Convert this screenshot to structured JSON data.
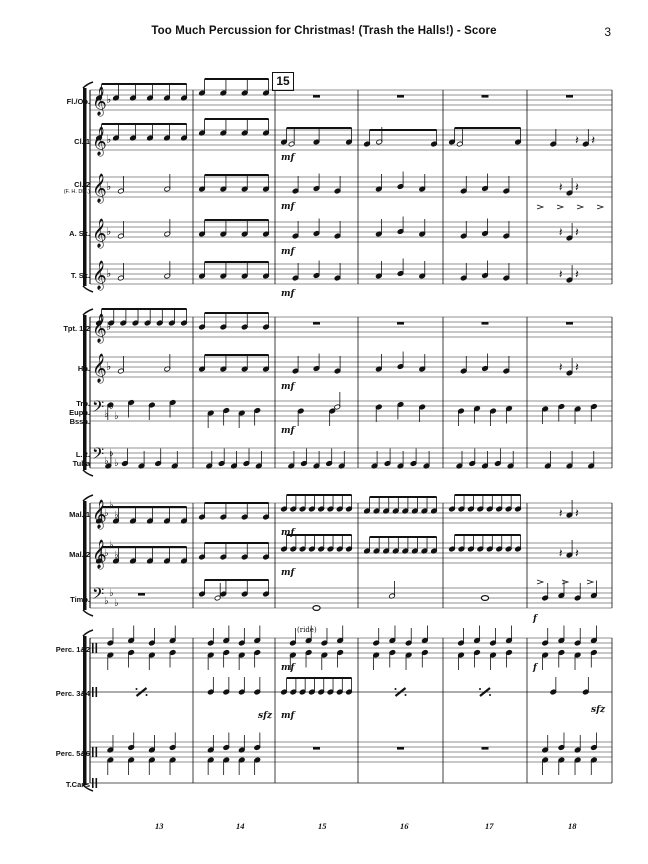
{
  "header": {
    "title": "Too Much Percussion for Christmas! (Trash the Halls!) - Score",
    "page_number": "3"
  },
  "rehearsal_mark": "15",
  "instruments": [
    {
      "name": "Fl./Ob.",
      "sub": "",
      "clef": "treble",
      "key": "flat1"
    },
    {
      "name": "Cl. 1",
      "sub": "",
      "clef": "treble",
      "key": "flat1"
    },
    {
      "name": "Cl. 2",
      "sub": "(F. H. Dbl.)",
      "clef": "treble",
      "key": "flat1"
    },
    {
      "name": "A. Sx.",
      "sub": "",
      "clef": "treble",
      "key": "flat1"
    },
    {
      "name": "T. Sx.",
      "sub": "",
      "clef": "treble",
      "key": "flat1"
    },
    {
      "name": "Tpt. 1-2",
      "sub": "",
      "clef": "treble",
      "key": "flat1"
    },
    {
      "name": "Hn.",
      "sub": "",
      "clef": "treble",
      "key": "flat1"
    },
    {
      "name": "Trb.\nEuph.\nBssn.",
      "sub": "",
      "clef": "bass",
      "key": "flat3"
    },
    {
      "name": "L.R.\nTuba",
      "sub": "",
      "clef": "bass",
      "key": "flat3"
    },
    {
      "name": "Mal. 1",
      "sub": "",
      "clef": "treble",
      "key": "flat3"
    },
    {
      "name": "Mal. 2",
      "sub": "",
      "clef": "treble",
      "key": "flat3"
    },
    {
      "name": "Timp.",
      "sub": "",
      "clef": "bass",
      "key": "flat3"
    },
    {
      "name": "Perc. 1&2",
      "sub": "",
      "clef": "perc",
      "key": "none"
    },
    {
      "name": "Perc. 3&4",
      "sub": "",
      "clef": "perc",
      "key": "none"
    },
    {
      "name": "Perc. 5&6",
      "sub": "",
      "clef": "perc",
      "key": "none"
    },
    {
      "name": "T.Cans",
      "sub": "",
      "clef": "perc",
      "key": "none"
    }
  ],
  "dynamics": {
    "mf": "mf",
    "f": "f",
    "sfz": "sfz",
    "ride": "(ride)"
  },
  "measure_numbers": [
    "13",
    "14",
    "15",
    "16",
    "17",
    "18"
  ]
}
